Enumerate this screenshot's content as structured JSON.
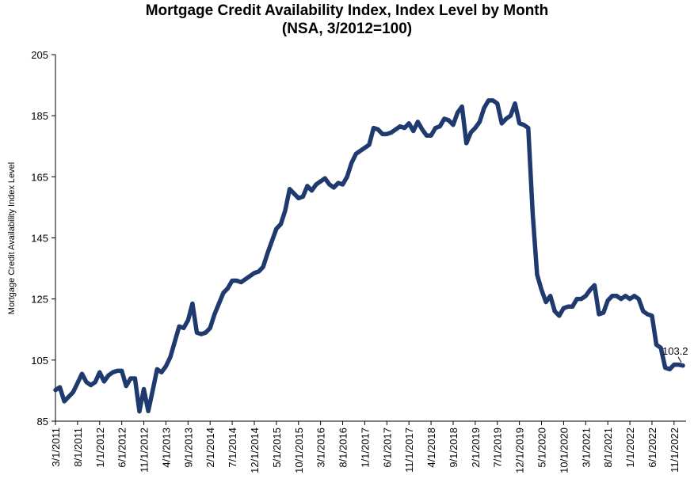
{
  "chart_data": {
    "type": "line",
    "title": "Mortgage Credit Availability Index, Index Level by Month",
    "subtitle": "(NSA, 3/2012=100)",
    "xlabel": "",
    "ylabel": "Mortgage Credit Availability Index Level",
    "ylim": [
      85,
      205
    ],
    "yticks": [
      85,
      105,
      125,
      145,
      165,
      185,
      205
    ],
    "x_tick_labels": [
      "3/1/2011",
      "8/1/2011",
      "1/1/2012",
      "6/1/2012",
      "11/1/2012",
      "4/1/2013",
      "9/1/2013",
      "2/1/2014",
      "7/1/2014",
      "12/1/2014",
      "5/1/2015",
      "10/1/2015",
      "3/1/2016",
      "8/1/2016",
      "1/1/2017",
      "6/1/2017",
      "11/1/2017",
      "4/1/2018",
      "9/1/2018",
      "2/1/2019",
      "7/1/2019",
      "12/1/2019",
      "5/1/2020",
      "10/1/2020",
      "3/1/2021",
      "8/1/2021",
      "1/1/2022",
      "6/1/2022",
      "11/1/2022"
    ],
    "grid": false,
    "legend": "none",
    "line_color": "#1f3a6e",
    "end_label": "103.2",
    "series": [
      {
        "x": [
          "3/2011",
          "4/2011",
          "5/2011",
          "6/2011",
          "7/2011",
          "8/2011",
          "9/2011",
          "10/2011",
          "11/2011",
          "12/2011",
          "1/2012",
          "2/2012",
          "3/2012",
          "4/2012",
          "5/2012",
          "6/2012",
          "7/2012",
          "8/2012",
          "9/2012",
          "10/2012",
          "11/2012",
          "12/2012",
          "1/2013",
          "2/2013",
          "3/2013",
          "4/2013",
          "5/2013",
          "6/2013",
          "7/2013",
          "8/2013",
          "9/2013",
          "10/2013",
          "11/2013",
          "12/2013",
          "1/2014",
          "2/2014",
          "3/2014",
          "4/2014",
          "5/2014",
          "6/2014",
          "7/2014",
          "8/2014",
          "9/2014",
          "10/2014",
          "11/2014",
          "12/2014",
          "1/2015",
          "2/2015",
          "3/2015",
          "4/2015",
          "5/2015",
          "6/2015",
          "7/2015",
          "8/2015",
          "9/2015",
          "10/2015",
          "11/2015",
          "12/2015",
          "1/2016",
          "2/2016",
          "3/2016",
          "4/2016",
          "5/2016",
          "6/2016",
          "7/2016",
          "8/2016",
          "9/2016",
          "10/2016",
          "11/2016",
          "12/2016",
          "1/2017",
          "2/2017",
          "3/2017",
          "4/2017",
          "5/2017",
          "6/2017",
          "7/2017",
          "8/2017",
          "9/2017",
          "10/2017",
          "11/2017",
          "12/2017",
          "1/2018",
          "2/2018",
          "3/2018",
          "4/2018",
          "5/2018",
          "6/2018",
          "7/2018",
          "8/2018",
          "9/2018",
          "10/2018",
          "11/2018",
          "12/2018",
          "1/2019",
          "2/2019",
          "3/2019",
          "4/2019",
          "5/2019",
          "6/2019",
          "7/2019",
          "8/2019",
          "9/2019",
          "10/2019",
          "11/2019",
          "12/2019",
          "1/2020",
          "2/2020",
          "3/2020",
          "4/2020",
          "5/2020",
          "6/2020",
          "7/2020",
          "8/2020",
          "9/2020",
          "10/2020",
          "11/2020",
          "12/2020",
          "1/2021",
          "2/2021",
          "3/2021",
          "4/2021",
          "5/2021",
          "6/2021",
          "7/2021",
          "8/2021",
          "9/2021",
          "10/2021",
          "11/2021",
          "12/2021",
          "1/2022",
          "2/2022",
          "3/2022",
          "4/2022",
          "5/2022",
          "6/2022",
          "7/2022",
          "8/2022",
          "9/2022",
          "10/2022",
          "11/2022",
          "12/2022",
          "1/2023"
        ],
        "values": [
          95.2,
          96.1,
          91.5,
          93.0,
          94.5,
          97.5,
          100.5,
          97.8,
          96.8,
          97.8,
          101.0,
          98.0,
          100.0,
          101.0,
          101.5,
          101.5,
          96.5,
          99.0,
          99.0,
          88.2,
          95.5,
          88.3,
          95.0,
          102.0,
          101.0,
          103.0,
          106.0,
          111.0,
          116.0,
          115.5,
          118.0,
          123.5,
          114.0,
          113.5,
          114.0,
          115.5,
          120.0,
          123.5,
          127.0,
          128.5,
          131.0,
          131.0,
          130.5,
          131.5,
          132.5,
          133.5,
          134.0,
          135.5,
          140.0,
          144.0,
          148.0,
          149.5,
          154.0,
          161.0,
          159.5,
          158.0,
          158.5,
          162.0,
          160.5,
          162.5,
          163.5,
          164.5,
          162.5,
          161.5,
          163.0,
          162.5,
          165.0,
          169.5,
          172.5,
          173.5,
          174.5,
          175.5,
          181.0,
          180.5,
          179.0,
          179.0,
          179.5,
          180.5,
          181.5,
          181.0,
          182.5,
          180.0,
          183.0,
          180.5,
          178.5,
          178.5,
          181.0,
          181.5,
          184.0,
          183.5,
          182.0,
          186.0,
          188.0,
          176.0,
          179.5,
          181.0,
          183.0,
          187.5,
          190.0,
          190.0,
          189.0,
          182.5,
          184.0,
          185.0,
          189.0,
          182.5,
          182.0,
          181.0,
          153.0,
          133.0,
          128.0,
          124.0,
          126.0,
          121.0,
          119.5,
          122.0,
          122.5,
          122.5,
          125.0,
          125.0,
          126.0,
          128.0,
          129.5,
          120.0,
          120.5,
          124.5,
          126.0,
          126.0,
          125.0,
          126.0,
          125.0,
          126.0,
          125.0,
          121.0,
          120.0,
          119.5,
          110.0,
          109.0,
          102.5,
          102.0,
          103.5,
          103.5,
          103.2
        ]
      }
    ]
  }
}
